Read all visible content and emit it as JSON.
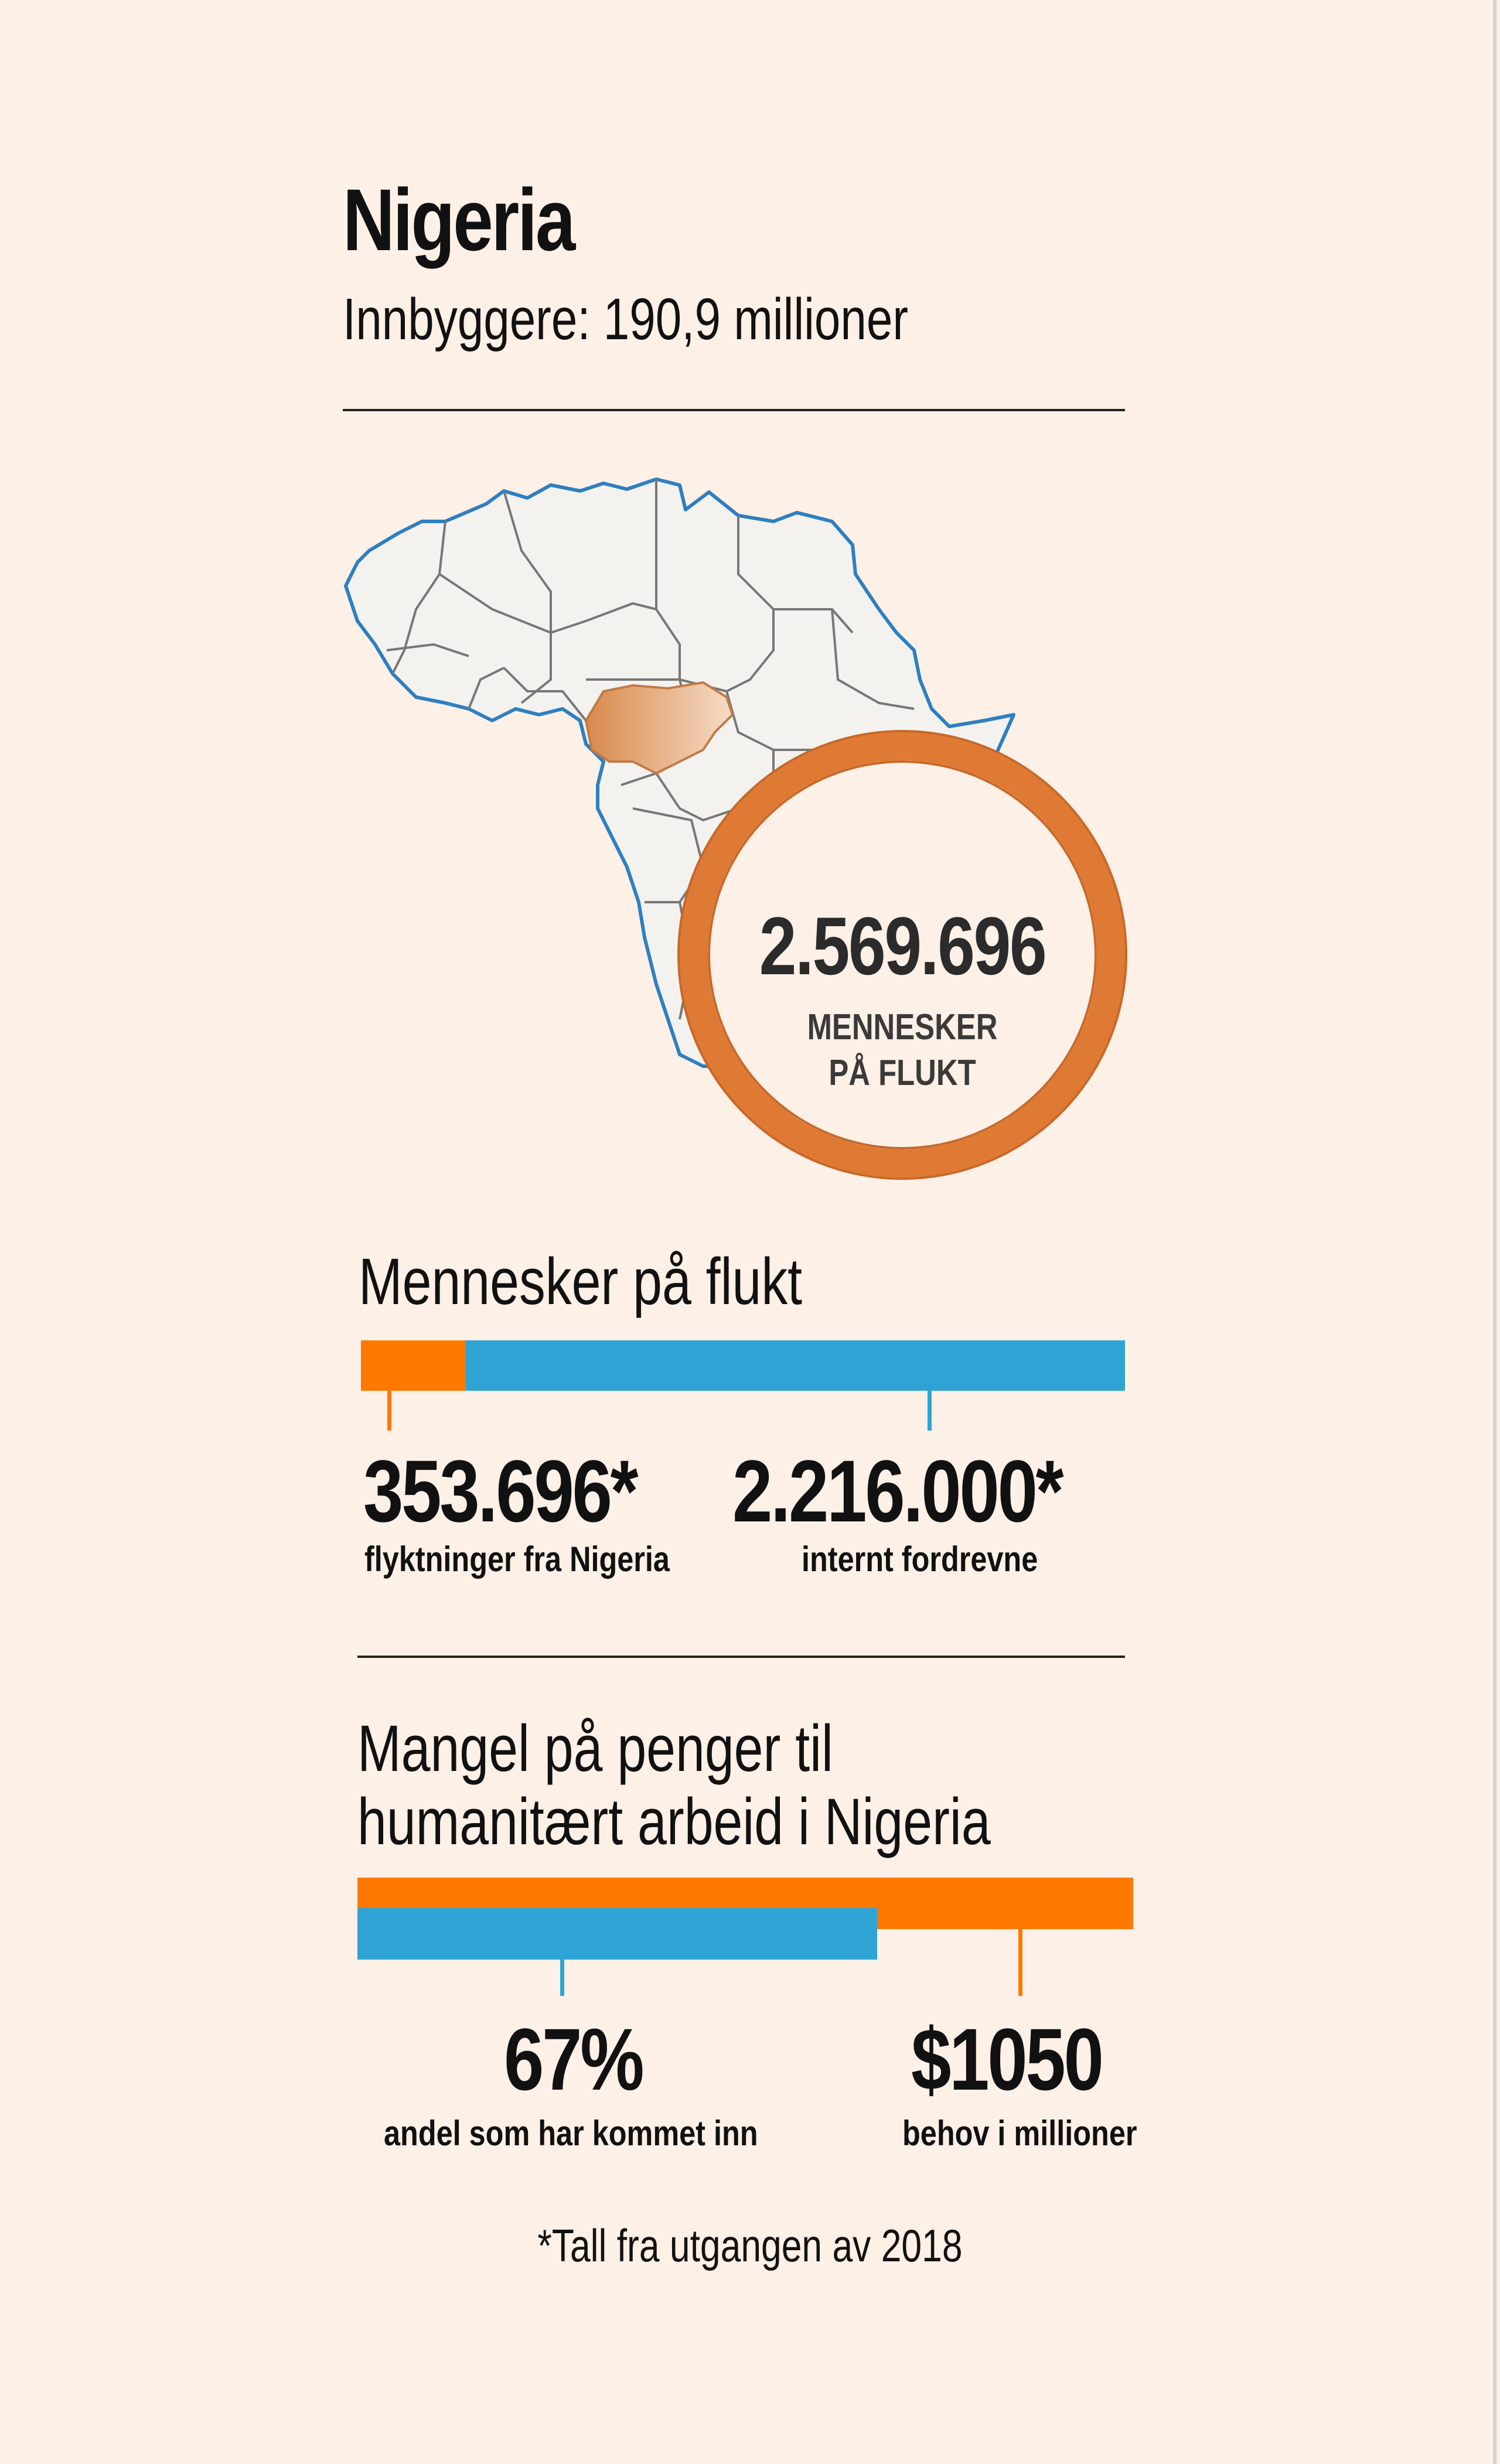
{
  "header": {
    "title": "Nigeria",
    "population": "Innbyggere: 190,9 millioner"
  },
  "highlight": {
    "total_number": "2.569.696",
    "label_line1": "MENNESKER",
    "label_line2": "PÅ FLUKT"
  },
  "displacement": {
    "title": "Mennesker på flukt",
    "refugees_value": "353.696*",
    "refugees_label": "flyktninger fra Nigeria",
    "idp_value": "2.216.000*",
    "idp_label": "internt fordrevne",
    "refugees_count": 353696,
    "idp_count": 2216000
  },
  "funding": {
    "title_line1": "Mangel på penger til",
    "title_line2": "humanitært arbeid i Nigeria",
    "received_value": "67%",
    "received_label": "andel som har kommet inn",
    "need_value": "$1050",
    "need_label": "behov i millioner",
    "received_fraction": 0.67
  },
  "footnote": "*Tall fra utgangen av 2018",
  "colors": {
    "orange": "#ff7800",
    "blue": "#2fa4d4",
    "ring": "#df7a35",
    "background": "#fdf0e6",
    "map_fill": "#f3f2ee",
    "map_coast": "#2e7fc0"
  }
}
